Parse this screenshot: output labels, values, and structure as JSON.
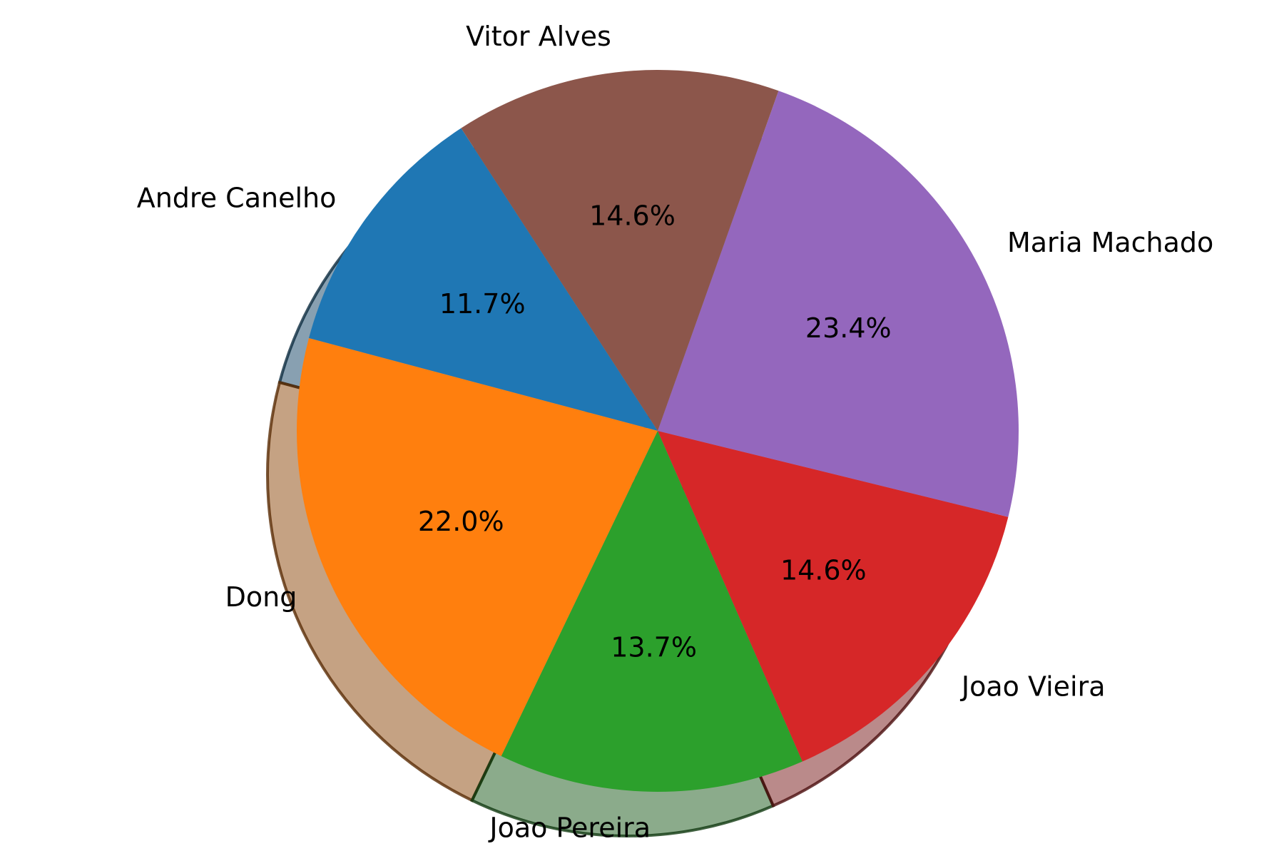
{
  "chart_data": {
    "type": "pie",
    "title": "",
    "shadow": true,
    "slices": [
      {
        "label": "Andre Canelho",
        "value": 11.7,
        "pct_label": "11.7%",
        "color": "#1f77b4"
      },
      {
        "label": "Dong",
        "value": 22.0,
        "pct_label": "22.0%",
        "color": "#ff7f0e"
      },
      {
        "label": "Joao Pereira",
        "value": 13.7,
        "pct_label": "13.7%",
        "color": "#2ca02c"
      },
      {
        "label": "Joao Vieira",
        "value": 14.6,
        "pct_label": "14.6%",
        "color": "#d62728"
      },
      {
        "label": "Maria Machado",
        "value": 23.4,
        "pct_label": "23.4%",
        "color": "#9467bd"
      },
      {
        "label": "Vitor Alves",
        "value": 14.6,
        "pct_label": "14.6%",
        "color": "#8c564b"
      }
    ]
  }
}
